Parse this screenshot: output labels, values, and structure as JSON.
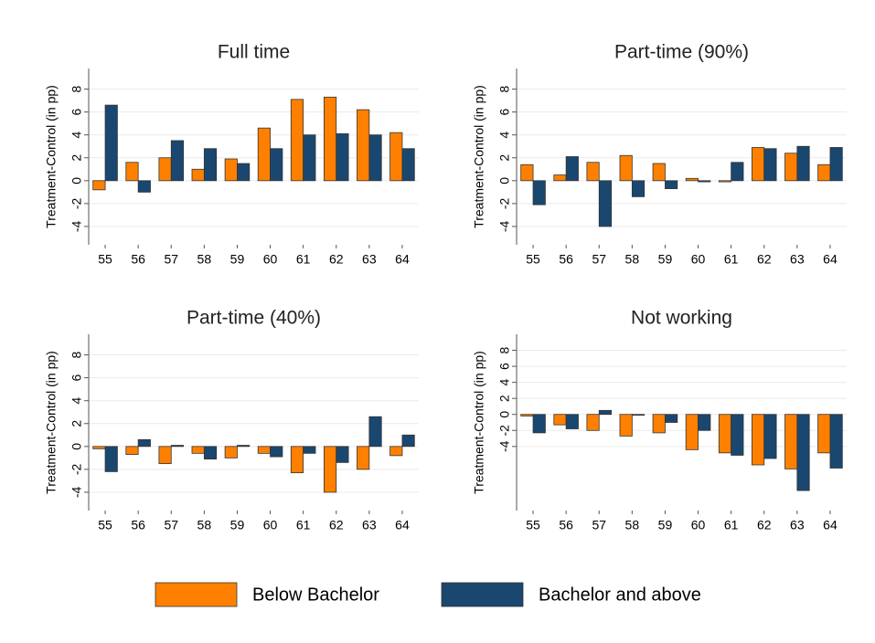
{
  "chart_data": [
    {
      "type": "bar",
      "title": "Full time",
      "y_label": "Treatment-Control (in pp)",
      "categories": [
        "55",
        "56",
        "57",
        "58",
        "59",
        "60",
        "61",
        "62",
        "63",
        "64"
      ],
      "series": [
        {
          "values": [
            -0.8,
            1.6,
            2.0,
            1.0,
            1.9,
            4.6,
            7.1,
            7.3,
            6.2,
            4.2
          ]
        },
        {
          "values": [
            6.6,
            -1.0,
            3.5,
            2.8,
            1.5,
            2.8,
            4.0,
            4.1,
            4.0,
            2.8
          ]
        }
      ],
      "ylim": [
        -5.6,
        9.8
      ],
      "yticks": [
        -4,
        -2,
        0,
        2,
        4,
        6,
        8
      ],
      "grid": true
    },
    {
      "type": "bar",
      "title": "Part-time (90%)",
      "y_label": "Treatment-Control (in pp)",
      "categories": [
        "55",
        "56",
        "57",
        "58",
        "59",
        "60",
        "61",
        "62",
        "63",
        "64"
      ],
      "series": [
        {
          "values": [
            1.4,
            0.5,
            1.6,
            2.2,
            1.5,
            0.2,
            -0.1,
            2.9,
            2.4,
            1.4
          ]
        },
        {
          "values": [
            -2.1,
            2.1,
            -4.0,
            -1.4,
            -0.7,
            -0.1,
            1.6,
            2.8,
            3.0,
            2.9
          ]
        }
      ],
      "ylim": [
        -5.6,
        9.8
      ],
      "yticks": [
        -4,
        -2,
        0,
        2,
        4,
        6,
        8
      ],
      "grid": true
    },
    {
      "type": "bar",
      "title": "Part-time (40%)",
      "y_label": "Treatment-Control (in pp)",
      "categories": [
        "55",
        "56",
        "57",
        "58",
        "59",
        "60",
        "61",
        "62",
        "63",
        "64"
      ],
      "series": [
        {
          "values": [
            -0.2,
            -0.7,
            -1.5,
            -0.6,
            -1.0,
            -0.6,
            -2.3,
            -4.0,
            -2.0,
            -0.8
          ]
        },
        {
          "values": [
            -2.2,
            0.6,
            0.1,
            -1.1,
            0.1,
            -0.9,
            -0.6,
            -1.4,
            2.6,
            1.0
          ]
        }
      ],
      "ylim": [
        -5.6,
        9.8
      ],
      "yticks": [
        -4,
        -2,
        0,
        2,
        4,
        6,
        8
      ],
      "grid": true
    },
    {
      "type": "bar",
      "title": "Not working",
      "y_label": "Treatment-Control (in pp)",
      "categories": [
        "55",
        "56",
        "57",
        "58",
        "59",
        "60",
        "61",
        "62",
        "63",
        "64"
      ],
      "series": [
        {
          "values": [
            -0.2,
            -1.3,
            -2.0,
            -2.7,
            -2.3,
            -4.4,
            -4.8,
            -6.3,
            -6.8,
            -4.8
          ]
        },
        {
          "values": [
            -2.3,
            -1.8,
            0.5,
            -0.1,
            -1.0,
            -2.0,
            -5.1,
            -5.5,
            -9.5,
            -6.7
          ]
        }
      ],
      "ylim": [
        -12,
        10
      ],
      "yticks": [
        -4,
        -2,
        0,
        2,
        4,
        6,
        8
      ],
      "grid": true
    }
  ],
  "legend": {
    "position": "bottom",
    "items": [
      {
        "name": "Below Bachelor",
        "color": "#ff8000"
      },
      {
        "name": "Bachelor and above",
        "color": "#1a476f"
      }
    ]
  }
}
